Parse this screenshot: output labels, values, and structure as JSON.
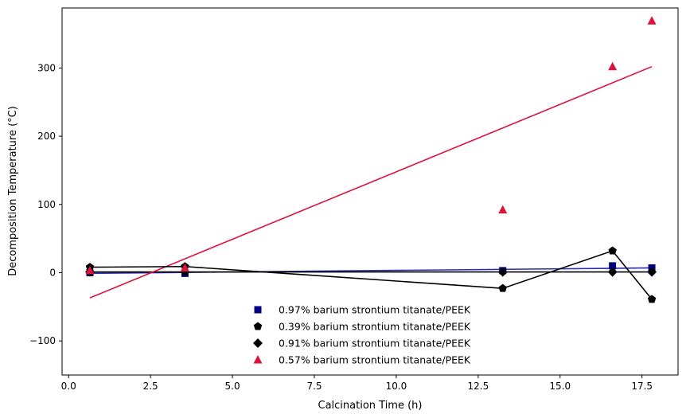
{
  "chart_data": {
    "type": "scatter",
    "xlabel": "Calcination Time (h)",
    "ylabel": "Decomposition Temperature (°C)",
    "xlim": [
      -0.2,
      18.6
    ],
    "ylim": [
      -150,
      388
    ],
    "xticks": [
      0.0,
      2.5,
      5.0,
      7.5,
      10.0,
      12.5,
      15.0,
      17.5
    ],
    "xtick_labels": [
      "0.0",
      "2.5",
      "5.0",
      "7.5",
      "10.0",
      "12.5",
      "15.0",
      "17.5"
    ],
    "yticks": [
      -100,
      0,
      100,
      200,
      300
    ],
    "ytick_labels": [
      "−100",
      "0",
      "100",
      "200",
      "300"
    ],
    "grid": false,
    "legend_position": "lower-center",
    "x": [
      0.65,
      3.55,
      13.25,
      16.6,
      17.8
    ],
    "series": [
      {
        "name": "0.97% barium strontium titanate/PEEK",
        "marker": "square",
        "color": "#000080",
        "line_color": "#2d2db0",
        "values": [
          0,
          -1,
          3,
          10,
          7
        ],
        "fit_line": {
          "x": [
            0.65,
            17.8
          ],
          "y": [
            -1,
            7
          ]
        },
        "connected": false
      },
      {
        "name": "0.39% barium strontium titanate/PEEK",
        "marker": "pentagon",
        "color": "#000000",
        "line_color": "#000000",
        "values": [
          8,
          9,
          -23,
          32,
          -39
        ],
        "fit_line": null,
        "connected": true
      },
      {
        "name": "0.91% barium strontium titanate/PEEK",
        "marker": "diamond",
        "color": "#000000",
        "line_color": "#000000",
        "values": [
          1,
          1,
          1,
          1,
          1
        ],
        "fit_line": {
          "x": [
            0.65,
            17.8
          ],
          "y": [
            1,
            1
          ]
        },
        "connected": false
      },
      {
        "name": "0.57% barium strontium titanate/PEEK",
        "marker": "triangle",
        "color": "#dc143c",
        "line_color": "#dc143c",
        "values": [
          3,
          7,
          92,
          302,
          369
        ],
        "fit_line": {
          "x": [
            0.65,
            17.8
          ],
          "y": [
            -37,
            302
          ]
        },
        "connected": false
      }
    ]
  }
}
